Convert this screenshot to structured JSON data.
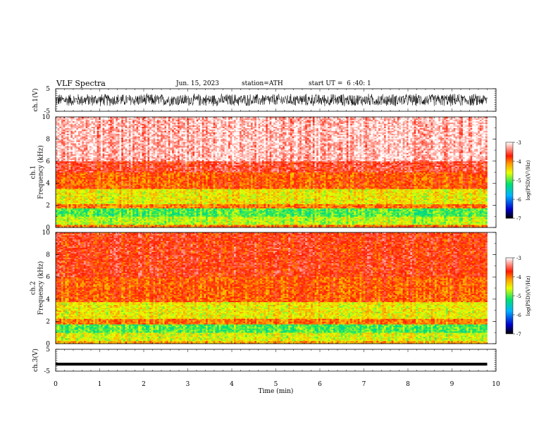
{
  "header": {
    "title": "VLF Spectra",
    "date": "Jun. 15, 2023",
    "station": "station=ATH",
    "start": "start UT =  6 :40: 1"
  },
  "chart_data": [
    {
      "type": "line",
      "name": "ch1-waveform",
      "ylabel": "ch.1(V)",
      "ylim": [
        -5,
        5
      ],
      "yticks": [
        "5",
        "-5"
      ],
      "xlim": [
        0,
        10
      ],
      "data_extent_min": [
        0,
        9.8
      ],
      "description_of_signal": "dense noisy waveform, amplitude about ±3 V",
      "amplitude": 3,
      "color": "#000000"
    },
    {
      "type": "heatmap",
      "name": "ch1-spectrogram",
      "ylabel": "ch.1\nFrequency (kHz)",
      "ylabel_lines": [
        "ch.1",
        "Frequency (kHz)"
      ],
      "ylim": [
        0,
        10
      ],
      "yticks": [
        "0",
        "2",
        "4",
        "6",
        "8",
        "10"
      ],
      "xlim": [
        0,
        10
      ],
      "data_extent_min": [
        0,
        9.8
      ],
      "colorbar": {
        "label": "log(PSD)(V²/Hz)",
        "range": [
          -7,
          -3
        ],
        "ticks": [
          "-3",
          "-4",
          "-5",
          "-6",
          "-7"
        ]
      },
      "bands_khz": [
        {
          "from": 0,
          "to": 0.3,
          "level": -4.0
        },
        {
          "from": 0.3,
          "to": 1.0,
          "level": -4.7
        },
        {
          "from": 1.0,
          "to": 1.8,
          "level": -5.0
        },
        {
          "from": 1.8,
          "to": 2.1,
          "level": -4.0
        },
        {
          "from": 2.1,
          "to": 3.5,
          "level": -4.5
        },
        {
          "from": 3.5,
          "to": 5.0,
          "level": -3.9
        },
        {
          "from": 5.0,
          "to": 6.0,
          "level": -3.6
        },
        {
          "from": 6.0,
          "to": 10.0,
          "level": -3.2
        }
      ]
    },
    {
      "type": "heatmap",
      "name": "ch2-spectrogram",
      "ylabel": "ch.2\nFrequency (kHz)",
      "ylabel_lines": [
        "ch.2",
        "Frequency (kHz)"
      ],
      "ylim": [
        0,
        10
      ],
      "yticks": [
        "0",
        "2",
        "4",
        "6",
        "8",
        "10"
      ],
      "xlim": [
        0,
        10
      ],
      "data_extent_min": [
        0,
        9.8
      ],
      "colorbar": {
        "label": "log(PSD)(V²/Hz)",
        "range": [
          -7,
          -3
        ],
        "ticks": [
          "-3",
          "-4",
          "-5",
          "-6",
          "-7"
        ]
      },
      "bands_khz": [
        {
          "from": 0,
          "to": 0.3,
          "level": -4.2
        },
        {
          "from": 0.3,
          "to": 1.0,
          "level": -4.6
        },
        {
          "from": 1.0,
          "to": 1.8,
          "level": -5.0
        },
        {
          "from": 1.8,
          "to": 2.2,
          "level": -4.0
        },
        {
          "from": 2.2,
          "to": 3.7,
          "level": -4.5
        },
        {
          "from": 3.7,
          "to": 6.0,
          "level": -3.9
        },
        {
          "from": 6.0,
          "to": 10.0,
          "level": -3.7
        }
      ]
    },
    {
      "type": "line",
      "name": "ch3-waveform",
      "ylabel": "ch.3(V)",
      "ylim": [
        -5,
        5
      ],
      "yticks": [
        "5",
        "-5"
      ],
      "xlim": [
        0,
        10
      ],
      "data_extent_min": [
        0,
        9.8
      ],
      "level": -1.8,
      "color": "#000000"
    }
  ],
  "xaxis": {
    "label": "Time (min)",
    "ticks": [
      "0",
      "1",
      "2",
      "3",
      "4",
      "5",
      "6",
      "7",
      "8",
      "9",
      "10"
    ]
  }
}
